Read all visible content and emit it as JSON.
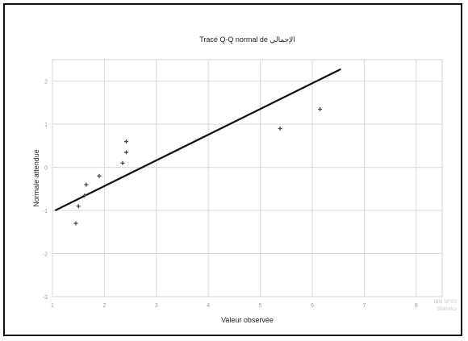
{
  "chart_data": {
    "type": "scatter",
    "title": "Tracé Q-Q normal de الإجمالي",
    "xlabel": "Valeur observée",
    "ylabel": "Normale attendue",
    "xlim": [
      1.0,
      8.5
    ],
    "ylim": [
      -3.0,
      2.5
    ],
    "xticks": [
      1,
      2,
      3,
      4,
      5,
      6,
      7,
      8
    ],
    "yticks": [
      -3,
      -2,
      -1,
      0,
      1,
      2
    ],
    "grid": true,
    "points": [
      {
        "x": 1.45,
        "y": -1.3
      },
      {
        "x": 1.5,
        "y": -0.9
      },
      {
        "x": 1.62,
        "y": -0.65
      },
      {
        "x": 1.65,
        "y": -0.4
      },
      {
        "x": 1.9,
        "y": -0.2
      },
      {
        "x": 2.35,
        "y": 0.1
      },
      {
        "x": 2.42,
        "y": 0.35
      },
      {
        "x": 2.42,
        "y": 0.6
      },
      {
        "x": 5.38,
        "y": 0.9
      },
      {
        "x": 6.15,
        "y": 1.35
      }
    ],
    "reference_line": {
      "x": [
        1.05,
        6.55
      ],
      "y": [
        -1.0,
        2.28
      ]
    }
  },
  "watermark": [
    "IBM SPSS",
    "Statistics"
  ]
}
